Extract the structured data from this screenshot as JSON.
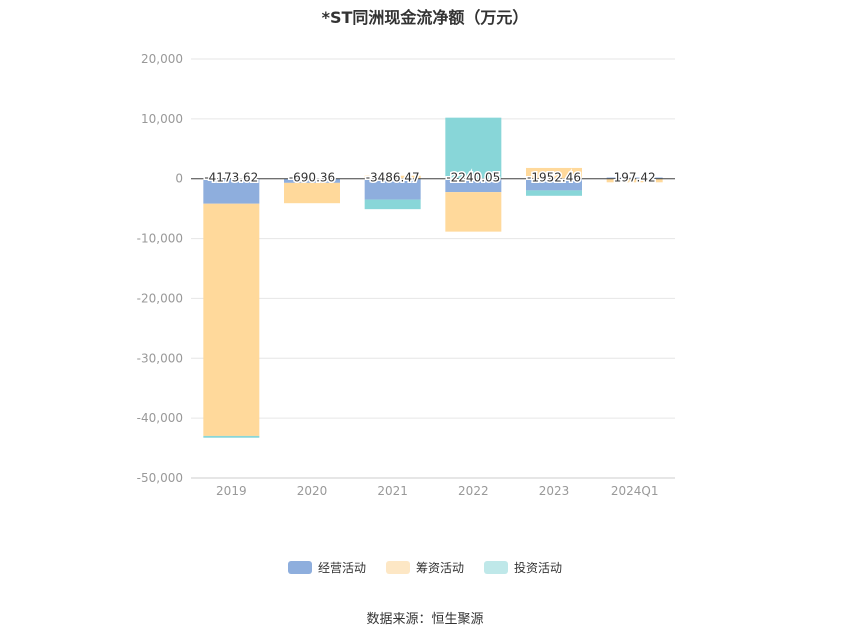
{
  "chart_data": {
    "type": "bar",
    "stacked": true,
    "title": "*ST同洲现金流净额（万元）",
    "categories": [
      "2019",
      "2020",
      "2021",
      "2022",
      "2023",
      "2024Q1"
    ],
    "ylim": [
      -50000,
      20000
    ],
    "yticks": [
      20000,
      10000,
      0,
      -10000,
      -20000,
      -30000,
      -40000,
      -50000
    ],
    "ytick_labels": [
      "20,000",
      "10,000",
      "0",
      "-10,000",
      "-20,000",
      "-30,000",
      "-40,000",
      "-50,000"
    ],
    "grid": true,
    "legend_position": "bottom",
    "series": [
      {
        "name": "经营活动",
        "color": "#8eaedd",
        "values": [
          -4173.62,
          -690.36,
          -3486.47,
          -2240.05,
          -1952.46,
          197.42
        ]
      },
      {
        "name": "筹资活动",
        "color": "#ffd99b",
        "values": [
          -38800,
          -3400,
          500,
          -6600,
          1800,
          -600
        ]
      },
      {
        "name": "投资活动",
        "color": "#88d6d8",
        "values": [
          -300,
          0,
          -1600,
          10200,
          -900,
          0
        ]
      }
    ],
    "data_labels": [
      "-4173.62",
      "-690.36",
      "-3486.47",
      "-2240.05",
      "-1952.46",
      "197.42"
    ]
  },
  "legend": {
    "items": [
      {
        "label": "经营活动",
        "color": "#8eaedd"
      },
      {
        "label": "筹资活动",
        "color": "#fde7c5"
      },
      {
        "label": "投资活动",
        "color": "#bfe8e9"
      }
    ]
  },
  "source": "数据来源：恒生聚源"
}
